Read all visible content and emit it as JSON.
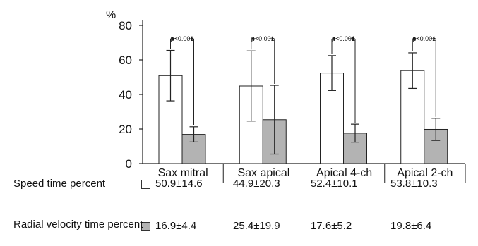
{
  "chart_data": {
    "type": "bar",
    "ylabel": "%",
    "ylim": [
      0,
      80
    ],
    "yticks": [
      0,
      20,
      40,
      60,
      80
    ],
    "grid": false,
    "categories": [
      "Sax mitral",
      "Sax apical",
      "Apical 4-ch",
      "Apical 2-ch"
    ],
    "series": [
      {
        "name": "Speed time percent",
        "color": "#ffffff",
        "values": [
          50.9,
          44.9,
          52.4,
          53.8
        ],
        "errors": [
          14.6,
          20.3,
          10.1,
          10.3
        ],
        "labels": [
          "50.9±14.6",
          "44.9±20.3",
          "52.4±10.1",
          "53.8±10.3"
        ]
      },
      {
        "name": "Radial velocity time percent",
        "color": "#b3b3b3",
        "values": [
          16.9,
          25.4,
          17.6,
          19.8
        ],
        "errors": [
          4.4,
          19.9,
          5.2,
          6.4
        ],
        "labels": [
          "16.9±4.4",
          "25.4±19.9",
          "17.6±5.2",
          "19.8±6.4"
        ]
      }
    ],
    "annotations": [
      "p<0.001",
      "p<0.001",
      "p<0.001",
      "p<0.001"
    ]
  }
}
